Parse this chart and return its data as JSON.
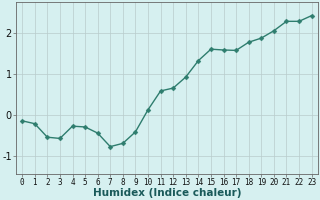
{
  "x": [
    0,
    1,
    2,
    3,
    4,
    5,
    6,
    7,
    8,
    9,
    10,
    11,
    12,
    13,
    14,
    15,
    16,
    17,
    18,
    19,
    20,
    21,
    22,
    23
  ],
  "y": [
    -0.15,
    -0.22,
    -0.55,
    -0.58,
    -0.28,
    -0.3,
    -0.45,
    -0.78,
    -0.7,
    -0.42,
    0.12,
    0.58,
    0.65,
    0.92,
    1.32,
    1.6,
    1.58,
    1.57,
    1.77,
    1.87,
    2.05,
    2.28,
    2.28,
    2.42
  ],
  "line_color": "#2e7d6e",
  "marker": "D",
  "marker_size": 2.5,
  "bg_color": "#d6f0f0",
  "grid_color": "#b8cccc",
  "xlabel": "Humidex (Indice chaleur)",
  "xlabel_fontsize": 7.5,
  "ylabel_ticks": [
    -1,
    0,
    1,
    2
  ],
  "xlim": [
    -0.5,
    23.5
  ],
  "ylim": [
    -1.45,
    2.75
  ],
  "xtick_labels": [
    "0",
    "1",
    "2",
    "3",
    "4",
    "5",
    "6",
    "7",
    "8",
    "9",
    "10",
    "11",
    "12",
    "13",
    "14",
    "15",
    "16",
    "17",
    "18",
    "19",
    "20",
    "21",
    "22",
    "23"
  ],
  "tick_fontsize": 5.5,
  "ytick_fontsize": 7,
  "linewidth": 1.0
}
